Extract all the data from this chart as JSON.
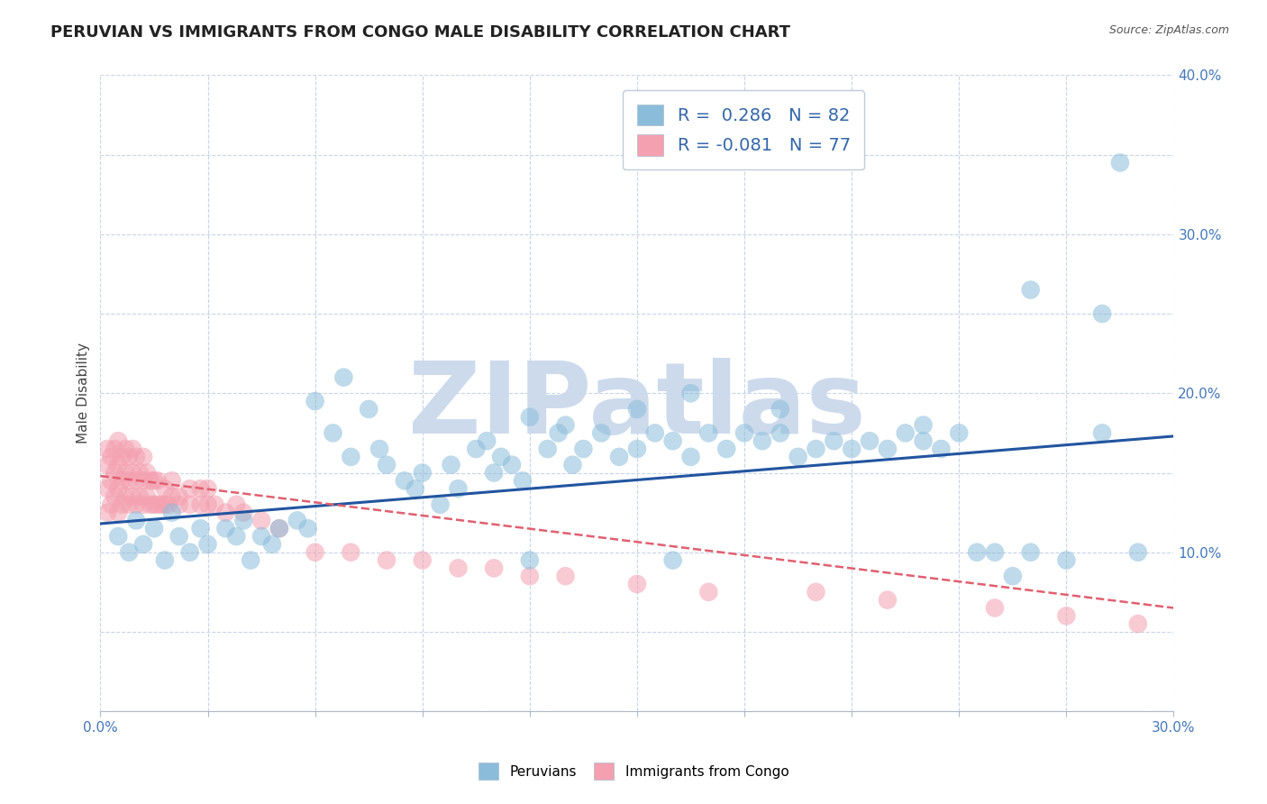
{
  "title": "PERUVIAN VS IMMIGRANTS FROM CONGO MALE DISABILITY CORRELATION CHART",
  "source_text": "Source: ZipAtlas.com",
  "ylabel": "Male Disability",
  "watermark": "ZIPatlas",
  "xlim": [
    0.0,
    0.3
  ],
  "ylim": [
    0.0,
    0.4
  ],
  "xticks": [
    0.0,
    0.03,
    0.06,
    0.09,
    0.12,
    0.15,
    0.18,
    0.21,
    0.24,
    0.27,
    0.3
  ],
  "yticks": [
    0.0,
    0.05,
    0.1,
    0.15,
    0.2,
    0.25,
    0.3,
    0.35,
    0.4
  ],
  "blue_R": 0.286,
  "blue_N": 82,
  "pink_R": -0.081,
  "pink_N": 77,
  "blue_color": "#8bbcda",
  "pink_color": "#f4a0b0",
  "blue_line_color": "#2255a0",
  "pink_line_color": "#e06070",
  "legend_label_blue": "Peruvians",
  "legend_label_pink": "Immigrants from Congo",
  "blue_scatter_x": [
    0.005,
    0.008,
    0.01,
    0.012,
    0.015,
    0.018,
    0.02,
    0.022,
    0.025,
    0.028,
    0.03,
    0.035,
    0.038,
    0.04,
    0.042,
    0.045,
    0.048,
    0.05,
    0.055,
    0.058,
    0.06,
    0.065,
    0.068,
    0.07,
    0.075,
    0.078,
    0.08,
    0.085,
    0.088,
    0.09,
    0.095,
    0.098,
    0.1,
    0.105,
    0.108,
    0.11,
    0.112,
    0.115,
    0.118,
    0.12,
    0.125,
    0.128,
    0.13,
    0.132,
    0.135,
    0.14,
    0.145,
    0.15,
    0.155,
    0.16,
    0.165,
    0.17,
    0.175,
    0.18,
    0.185,
    0.19,
    0.195,
    0.2,
    0.205,
    0.21,
    0.215,
    0.22,
    0.225,
    0.23,
    0.235,
    0.24,
    0.245,
    0.25,
    0.255,
    0.26,
    0.27,
    0.28,
    0.285,
    0.15,
    0.165,
    0.19,
    0.23,
    0.26,
    0.28,
    0.29,
    0.16,
    0.12
  ],
  "blue_scatter_y": [
    0.11,
    0.1,
    0.12,
    0.105,
    0.115,
    0.095,
    0.125,
    0.11,
    0.1,
    0.115,
    0.105,
    0.115,
    0.11,
    0.12,
    0.095,
    0.11,
    0.105,
    0.115,
    0.12,
    0.115,
    0.195,
    0.175,
    0.21,
    0.16,
    0.19,
    0.165,
    0.155,
    0.145,
    0.14,
    0.15,
    0.13,
    0.155,
    0.14,
    0.165,
    0.17,
    0.15,
    0.16,
    0.155,
    0.145,
    0.185,
    0.165,
    0.175,
    0.18,
    0.155,
    0.165,
    0.175,
    0.16,
    0.165,
    0.175,
    0.17,
    0.16,
    0.175,
    0.165,
    0.175,
    0.17,
    0.175,
    0.16,
    0.165,
    0.17,
    0.165,
    0.17,
    0.165,
    0.175,
    0.17,
    0.165,
    0.175,
    0.1,
    0.1,
    0.085,
    0.1,
    0.095,
    0.25,
    0.345,
    0.19,
    0.2,
    0.19,
    0.18,
    0.265,
    0.175,
    0.1,
    0.095,
    0.095
  ],
  "pink_scatter_x": [
    0.002,
    0.002,
    0.002,
    0.002,
    0.003,
    0.003,
    0.003,
    0.004,
    0.004,
    0.004,
    0.005,
    0.005,
    0.005,
    0.005,
    0.006,
    0.006,
    0.006,
    0.007,
    0.007,
    0.007,
    0.008,
    0.008,
    0.008,
    0.009,
    0.009,
    0.009,
    0.01,
    0.01,
    0.01,
    0.011,
    0.011,
    0.012,
    0.012,
    0.012,
    0.013,
    0.013,
    0.014,
    0.014,
    0.015,
    0.015,
    0.016,
    0.016,
    0.017,
    0.018,
    0.018,
    0.019,
    0.02,
    0.02,
    0.022,
    0.022,
    0.025,
    0.025,
    0.028,
    0.028,
    0.03,
    0.03,
    0.032,
    0.035,
    0.038,
    0.04,
    0.045,
    0.05,
    0.06,
    0.07,
    0.08,
    0.09,
    0.1,
    0.11,
    0.12,
    0.13,
    0.15,
    0.17,
    0.2,
    0.22,
    0.25,
    0.27,
    0.29
  ],
  "pink_scatter_y": [
    0.125,
    0.14,
    0.155,
    0.165,
    0.13,
    0.145,
    0.16,
    0.135,
    0.15,
    0.165,
    0.125,
    0.14,
    0.155,
    0.17,
    0.13,
    0.145,
    0.16,
    0.135,
    0.15,
    0.165,
    0.13,
    0.145,
    0.16,
    0.135,
    0.15,
    0.165,
    0.13,
    0.145,
    0.16,
    0.135,
    0.15,
    0.13,
    0.145,
    0.16,
    0.135,
    0.15,
    0.13,
    0.145,
    0.13,
    0.145,
    0.13,
    0.145,
    0.13,
    0.13,
    0.14,
    0.13,
    0.135,
    0.145,
    0.135,
    0.13,
    0.13,
    0.14,
    0.13,
    0.14,
    0.13,
    0.14,
    0.13,
    0.125,
    0.13,
    0.125,
    0.12,
    0.115,
    0.1,
    0.1,
    0.095,
    0.095,
    0.09,
    0.09,
    0.085,
    0.085,
    0.08,
    0.075,
    0.075,
    0.07,
    0.065,
    0.06,
    0.055
  ],
  "background_color": "#ffffff",
  "grid_color": "#c8d4e8",
  "title_fontsize": 13,
  "axis_label_fontsize": 11,
  "tick_fontsize": 11,
  "watermark_color": "#ccdaec",
  "watermark_fontsize": 80,
  "blue_line_y0": 0.118,
  "blue_line_y1": 0.173,
  "pink_line_y0": 0.148,
  "pink_line_y1": 0.065
}
